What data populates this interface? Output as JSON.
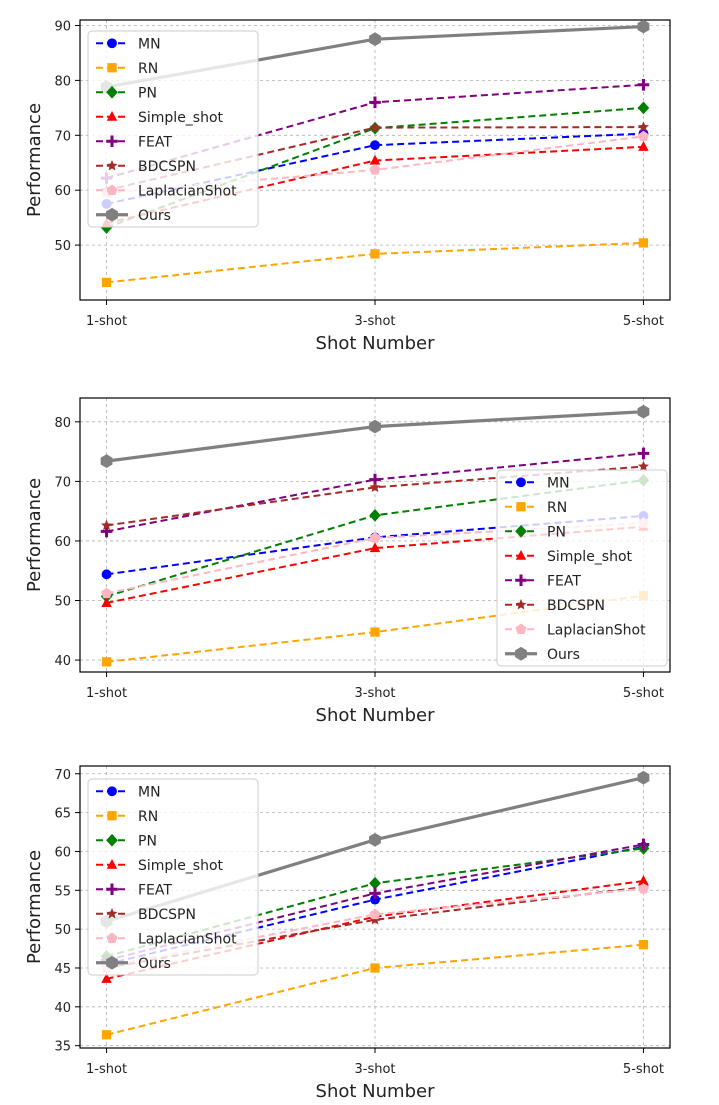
{
  "colors": {
    "MN": "#0000ff",
    "RN": "#ffa500",
    "PN": "#008000",
    "Simple_shot": "#ff0000",
    "FEAT": "#800080",
    "BDCSPN": "#a52a2a",
    "LaplacianShot": "#ffb6c1",
    "Ours": "#808080"
  },
  "chart_data": [
    {
      "type": "line",
      "categories": [
        "1-shot",
        "3-shot",
        "5-shot"
      ],
      "xlabel": "Shot Number",
      "ylabel": "Performance",
      "ylim": [
        40,
        91
      ],
      "yticks": [
        50,
        60,
        70,
        80,
        90
      ],
      "grid": true,
      "legend": "top-left",
      "series": [
        {
          "name": "MN",
          "marker": "circle",
          "dashed": true,
          "values": [
            57.5,
            68.2,
            70.3
          ]
        },
        {
          "name": "RN",
          "marker": "square",
          "dashed": true,
          "values": [
            43.2,
            48.4,
            50.4
          ]
        },
        {
          "name": "PN",
          "marker": "diamond",
          "dashed": true,
          "values": [
            53.2,
            71.3,
            75.0
          ]
        },
        {
          "name": "Simple_shot",
          "marker": "triangle",
          "dashed": true,
          "values": [
            54.0,
            65.4,
            67.9
          ]
        },
        {
          "name": "FEAT",
          "marker": "plus",
          "dashed": true,
          "values": [
            62.2,
            76.0,
            79.2
          ]
        },
        {
          "name": "BDCSPN",
          "marker": "star",
          "dashed": true,
          "values": [
            60.0,
            71.4,
            71.5
          ]
        },
        {
          "name": "LaplacianShot",
          "marker": "pentagon",
          "dashed": true,
          "values": [
            59.5,
            63.7,
            69.8
          ]
        },
        {
          "name": "Ours",
          "marker": "hexagon",
          "dashed": false,
          "values": [
            78.8,
            87.5,
            89.8
          ]
        }
      ]
    },
    {
      "type": "line",
      "categories": [
        "1-shot",
        "3-shot",
        "5-shot"
      ],
      "xlabel": "Shot Number",
      "ylabel": "Performance",
      "ylim": [
        38,
        84
      ],
      "yticks": [
        40,
        50,
        60,
        70,
        80
      ],
      "grid": true,
      "legend": "lower-right",
      "series": [
        {
          "name": "MN",
          "marker": "circle",
          "dashed": true,
          "values": [
            54.4,
            60.6,
            64.2
          ]
        },
        {
          "name": "RN",
          "marker": "square",
          "dashed": true,
          "values": [
            39.7,
            44.7,
            50.8
          ]
        },
        {
          "name": "PN",
          "marker": "diamond",
          "dashed": true,
          "values": [
            50.7,
            64.3,
            70.2
          ]
        },
        {
          "name": "Simple_shot",
          "marker": "triangle",
          "dashed": true,
          "values": [
            49.6,
            58.8,
            62.4
          ]
        },
        {
          "name": "FEAT",
          "marker": "plus",
          "dashed": true,
          "values": [
            61.6,
            70.3,
            74.7
          ]
        },
        {
          "name": "BDCSPN",
          "marker": "star",
          "dashed": true,
          "values": [
            62.6,
            69.0,
            72.5
          ]
        },
        {
          "name": "LaplacianShot",
          "marker": "pentagon",
          "dashed": true,
          "values": [
            51.2,
            60.5,
            63.0
          ]
        },
        {
          "name": "Ours",
          "marker": "hexagon",
          "dashed": false,
          "values": [
            73.4,
            79.2,
            81.7
          ]
        }
      ]
    },
    {
      "type": "line",
      "categories": [
        "1-shot",
        "3-shot",
        "5-shot"
      ],
      "xlabel": "Shot Number",
      "ylabel": "Performance",
      "ylim": [
        34.7,
        71
      ],
      "yticks": [
        35,
        40,
        45,
        50,
        55,
        60,
        65,
        70
      ],
      "grid": true,
      "legend": "top-left",
      "series": [
        {
          "name": "MN",
          "marker": "circle",
          "dashed": true,
          "values": [
            45.5,
            53.8,
            60.6
          ]
        },
        {
          "name": "RN",
          "marker": "square",
          "dashed": true,
          "values": [
            36.4,
            45.0,
            48.0
          ]
        },
        {
          "name": "PN",
          "marker": "diamond",
          "dashed": true,
          "values": [
            46.5,
            55.9,
            60.4
          ]
        },
        {
          "name": "Simple_shot",
          "marker": "triangle",
          "dashed": true,
          "values": [
            43.6,
            51.6,
            56.2
          ]
        },
        {
          "name": "FEAT",
          "marker": "plus",
          "dashed": true,
          "values": [
            46.0,
            54.6,
            60.9
          ]
        },
        {
          "name": "BDCSPN",
          "marker": "star",
          "dashed": true,
          "values": [
            45.0,
            51.2,
            55.4
          ]
        },
        {
          "name": "LaplacianShot",
          "marker": "pentagon",
          "dashed": true,
          "values": [
            45.2,
            51.9,
            55.2
          ]
        },
        {
          "name": "Ours",
          "marker": "hexagon",
          "dashed": false,
          "values": [
            51.0,
            61.5,
            69.5
          ]
        }
      ]
    }
  ]
}
